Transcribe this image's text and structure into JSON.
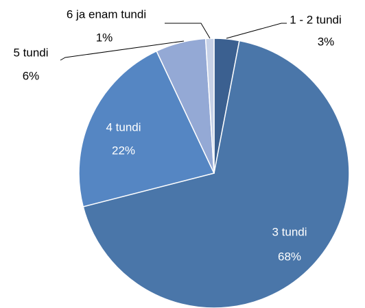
{
  "chart_data": {
    "type": "pie",
    "categories": [
      "1 - 2 tundi",
      "3 tundi",
      "4 tundi",
      "5 tundi",
      "6 ja enam tundi"
    ],
    "values": [
      3,
      68,
      22,
      6,
      1
    ],
    "value_labels": [
      "3%",
      "68%",
      "22%",
      "6%",
      "1%"
    ],
    "colors": [
      "#3b6090",
      "#4a76a9",
      "#5586c3",
      "#94a9d5",
      "#c6d1e7"
    ]
  }
}
